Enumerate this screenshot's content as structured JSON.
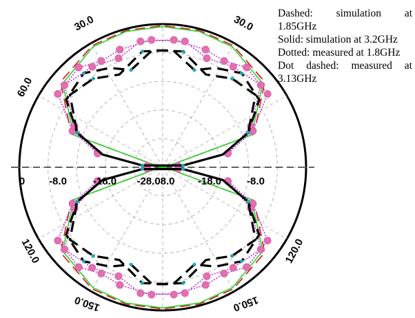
{
  "chart_data": {
    "type": "polar",
    "radial_ticks": [
      "-8.0",
      "-18.0",
      "-28.0"
    ],
    "center_label": "-28.08.0",
    "angle_labels": [
      "0",
      "30.0",
      "60.0",
      "120.0",
      "150.0"
    ],
    "angle_unit": "deg",
    "radial_min": -28,
    "radial_max": 0,
    "series": [
      {
        "name": "Dashed: simulation at 1.85GHz",
        "style": "dashed",
        "color": "#d01818",
        "points": [
          [
            5,
            -27.5
          ],
          [
            20,
            -9
          ],
          [
            40,
            -2
          ],
          [
            60,
            -0.5
          ],
          [
            75,
            -0.3
          ],
          [
            90,
            -0.3
          ],
          [
            105,
            -0.3
          ],
          [
            120,
            -0.5
          ],
          [
            140,
            -2
          ],
          [
            160,
            -9
          ],
          [
            175,
            -27.5
          ]
        ]
      },
      {
        "name": "Solid: simulation at 3.2GHz",
        "style": "solid",
        "color": "#2ad12a",
        "points": [
          [
            5,
            -27.5
          ],
          [
            20,
            -9.5
          ],
          [
            40,
            -2.5
          ],
          [
            60,
            -0.8
          ],
          [
            75,
            -0.5
          ],
          [
            90,
            -0.5
          ],
          [
            105,
            -0.5
          ],
          [
            120,
            -0.8
          ],
          [
            140,
            -2.5
          ],
          [
            160,
            -9.5
          ],
          [
            175,
            -27.5
          ]
        ]
      },
      {
        "name": "Dotted: measured at 1.8GHz",
        "style": "dotted",
        "color": "#b21bcc",
        "points": [
          [
            5,
            -25
          ],
          [
            12,
            -15
          ],
          [
            22,
            -9
          ],
          [
            35,
            -3
          ],
          [
            50,
            -2.5
          ],
          [
            60,
            -4
          ],
          [
            70,
            -3.5
          ],
          [
            85,
            -3
          ],
          [
            100,
            -3
          ],
          [
            112,
            -5
          ],
          [
            125,
            -4
          ],
          [
            140,
            -3
          ],
          [
            155,
            -9
          ],
          [
            168,
            -15
          ],
          [
            175,
            -25
          ]
        ]
      },
      {
        "name": "Dot dashed: measured at 3.13GHz",
        "style": "dotdashed",
        "color": "#000000",
        "points": [
          [
            5,
            -24
          ],
          [
            12,
            -16
          ],
          [
            22,
            -10
          ],
          [
            35,
            -5
          ],
          [
            50,
            -4
          ],
          [
            62,
            -6
          ],
          [
            72,
            -8
          ],
          [
            85,
            -5
          ],
          [
            100,
            -5
          ],
          [
            115,
            -8
          ],
          [
            128,
            -6
          ],
          [
            142,
            -5
          ],
          [
            158,
            -10
          ],
          [
            168,
            -16
          ],
          [
            175,
            -24
          ]
        ]
      }
    ]
  },
  "legend": [
    "Dashed: simulation at 1.85GHz",
    "Solid: simulation at 3.2GHz",
    "Dotted: measured at 1.8GHz",
    "Dot dashed: measured at 3.13GHz"
  ]
}
